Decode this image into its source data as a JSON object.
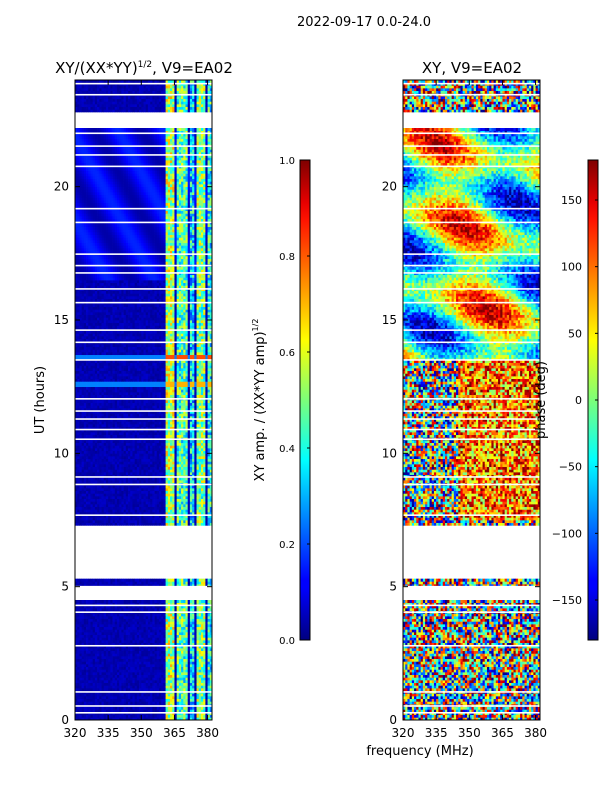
{
  "suptitle": "2022-09-17 0.0-24.0",
  "shared_xlabel": "frequency (MHz)",
  "chart_data": [
    {
      "type": "heatmap",
      "title_main": "XY/(XX*YY)",
      "title_sup": "1/2",
      "title_rest": ", V9=EA02",
      "xlim": [
        320,
        382
      ],
      "xticks": [
        320,
        335,
        350,
        365,
        380
      ],
      "ylim": [
        0,
        24
      ],
      "yticks": [
        0,
        5,
        10,
        15,
        20
      ],
      "ylabel": "UT (hours)",
      "colorbar": {
        "colormap": "jet",
        "range": [
          0.0,
          1.0
        ],
        "ticks": [
          "0.0",
          "0.2",
          "0.4",
          "0.6",
          "0.8",
          "1.0"
        ],
        "label_main": "XY amp. / (XX*YY amp)",
        "label_sup": "1/2"
      },
      "missing_time_ranges": [
        [
          4.5,
          5.0
        ],
        [
          5.3,
          7.3
        ],
        [
          22.2,
          22.8
        ]
      ],
      "background_value": 0.05,
      "bright_channel_bands": [
        {
          "freq": [
            361,
            365
          ],
          "value": 0.55
        },
        {
          "freq": [
            366,
            371
          ],
          "value": 0.45
        },
        {
          "freq": [
            372,
            374
          ],
          "value": 0.35
        },
        {
          "freq": [
            375,
            379
          ],
          "value": 0.5
        },
        {
          "freq": [
            380,
            382
          ],
          "value": 0.4
        }
      ],
      "highlight_rows": [
        {
          "ut": 13.6,
          "value": 0.8
        },
        {
          "ut": 12.6,
          "value": 0.7
        }
      ]
    },
    {
      "type": "heatmap",
      "title": "XY, V9=EA02",
      "xlim": [
        320,
        382
      ],
      "xticks": [
        320,
        335,
        350,
        365,
        380
      ],
      "ylim": [
        0,
        24
      ],
      "yticks": [
        0,
        5,
        10,
        15,
        20
      ],
      "ylabel": "",
      "colorbar": {
        "colormap": "jet",
        "range": [
          -180,
          180
        ],
        "ticks": [
          "150",
          "100",
          "50",
          "0",
          "−50",
          "−100",
          "−150"
        ],
        "tick_values": [
          150,
          100,
          50,
          0,
          -50,
          -100,
          -150
        ],
        "label": "phase (deg)"
      },
      "missing_time_ranges": [
        [
          4.5,
          5.0
        ],
        [
          5.3,
          7.3
        ],
        [
          22.2,
          22.8
        ]
      ],
      "value_pattern": "random phase noise, coherent large-scale structure 13.5–22 UT, positive-phase cluster 7.5–13 UT at 345–382 MHz"
    }
  ]
}
